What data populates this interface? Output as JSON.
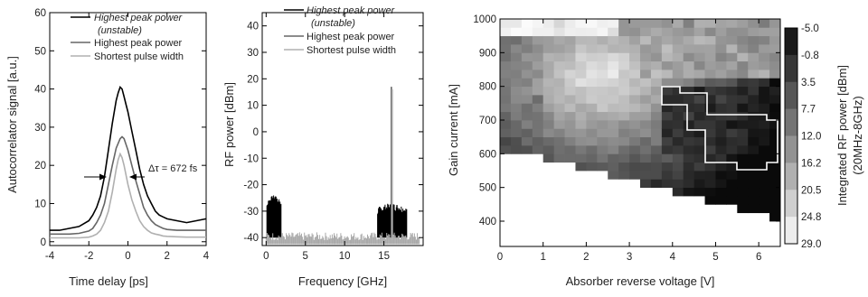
{
  "chart_data": [
    {
      "type": "line",
      "xlabel": "Time delay [ps]",
      "ylabel": "Autocorrelator signal [a.u.]",
      "xlim": [
        -4,
        4
      ],
      "ylim": [
        -1,
        60
      ],
      "xticks": [
        "-4",
        "-2",
        "0",
        "2",
        "4"
      ],
      "yticks": [
        "0",
        "10",
        "20",
        "30",
        "40",
        "50",
        "60"
      ],
      "annotation": "Δτ = 672 fs",
      "legend_position": "top-right",
      "series": [
        {
          "name": "Highest peak power",
          "note": "(unstable)",
          "color": "#000000",
          "x": [
            -4,
            -3.5,
            -3,
            -2.5,
            -2,
            -1.8,
            -1.6,
            -1.4,
            -1.2,
            -1.0,
            -0.8,
            -0.6,
            -0.5,
            -0.4,
            -0.3,
            -0.2,
            -0.1,
            0,
            0.2,
            0.4,
            0.6,
            0.8,
            1.0,
            1.2,
            1.4,
            1.6,
            1.8,
            2,
            2.5,
            3,
            3.5,
            4
          ],
          "y": [
            3,
            3,
            3.5,
            4,
            5.5,
            7,
            9,
            12,
            17,
            24,
            31,
            37,
            39,
            40.5,
            40,
            38,
            36,
            34,
            29,
            24,
            19,
            15,
            12,
            10,
            8,
            7,
            6.5,
            6,
            5.5,
            5,
            5.5,
            6
          ]
        },
        {
          "name": "Highest peak power",
          "color": "#666666",
          "x": [
            -4,
            -3.5,
            -3,
            -2.5,
            -2,
            -1.8,
            -1.6,
            -1.4,
            -1.2,
            -1.0,
            -0.8,
            -0.6,
            -0.4,
            -0.3,
            -0.2,
            0,
            0.2,
            0.4,
            0.6,
            0.8,
            1.0,
            1.2,
            1.4,
            1.6,
            1.8,
            2,
            2.5,
            3,
            3.5,
            4
          ],
          "y": [
            2,
            2,
            2,
            2.2,
            2.8,
            3.5,
            5,
            7,
            10,
            15,
            20,
            24.5,
            27,
            27.5,
            27,
            24,
            20,
            16,
            12.5,
            9,
            7,
            5.5,
            4.5,
            4,
            3.5,
            3.2,
            3,
            3,
            3,
            3
          ]
        },
        {
          "name": "Shortest pulse width",
          "color": "#b0b0b0",
          "x": [
            -4,
            -3.5,
            -3,
            -2.5,
            -2,
            -1.8,
            -1.6,
            -1.4,
            -1.2,
            -1.0,
            -0.8,
            -0.6,
            -0.5,
            -0.4,
            -0.3,
            -0.2,
            0,
            0.2,
            0.4,
            0.6,
            0.8,
            1.0,
            1.2,
            1.4,
            1.6,
            1.8,
            2,
            2.5,
            3,
            3.5,
            4
          ],
          "y": [
            1,
            1,
            1,
            1,
            1.2,
            1.5,
            2,
            3,
            5,
            8,
            13,
            19,
            21.5,
            23,
            22,
            20,
            15,
            11,
            8,
            5.5,
            4,
            3,
            2.3,
            2,
            1.8,
            1.5,
            1.4,
            1.3,
            1.2,
            1.2,
            1.2
          ]
        }
      ]
    },
    {
      "type": "line",
      "xlabel": "Frequency [GHz]",
      "ylabel": "RF power [dBm]",
      "xlim": [
        -0.5,
        20
      ],
      "ylim": [
        -43,
        45
      ],
      "xticks": [
        "0",
        "5",
        "10",
        "15"
      ],
      "yticks": [
        "-40",
        "-30",
        "-20",
        "-10",
        "0",
        "10",
        "20",
        "30",
        "40"
      ],
      "legend_position": "top-right",
      "series": [
        {
          "name": "Highest peak power",
          "note": "(unstable)",
          "color": "#000000",
          "segments": [
            [
              0.1,
              1.9,
              -32,
              -27
            ],
            [
              14.2,
              17.9,
              -33,
              -30
            ]
          ],
          "floor": -40
        },
        {
          "name": "Highest peak power",
          "color": "#666666",
          "peak_x": 15.95,
          "peak_y": 17,
          "floor": -40
        },
        {
          "name": "Shortest pulse width",
          "color": "#b0b0b0",
          "peak_x": 15.95,
          "peak_y": 16,
          "floor": -41
        }
      ]
    },
    {
      "type": "heatmap",
      "xlabel": "Absorber reverse voltage [V]",
      "ylabel": "Gain current [mA]",
      "xlim": [
        0,
        6.5
      ],
      "ylim": [
        325,
        1000
      ],
      "xticks": [
        "0",
        "1",
        "2",
        "3",
        "4",
        "5",
        "6"
      ],
      "yticks": [
        "400",
        "500",
        "600",
        "700",
        "800",
        "900",
        "1000"
      ],
      "colorbar_label": "Integrated RF power [dBm]",
      "colorbar_sublabel": "(20MHz-8GHz)",
      "colorbar_ticks": [
        "-5.0",
        "-0.8",
        "3.5",
        "7.7",
        "12.0",
        "16.2",
        "20.5",
        "24.8",
        "29.0"
      ],
      "value_range": [
        -5,
        29
      ],
      "x_step": 0.25,
      "y_step": 25
    }
  ]
}
